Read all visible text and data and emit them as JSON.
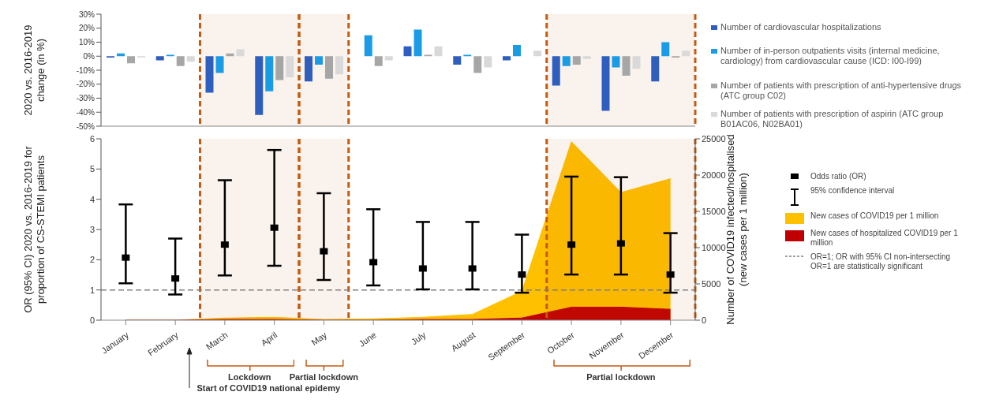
{
  "chart_data": [
    {
      "type": "bar",
      "categories": [
        "January",
        "February",
        "March",
        "April",
        "May",
        "June",
        "July",
        "August",
        "September",
        "October",
        "November",
        "December"
      ],
      "tick_labels": "y",
      "ylabel": "2020 vs. 2016-2019 change (in %)",
      "ylim": [
        -50,
        30
      ],
      "yticks": [
        {
          "value": -50,
          "label": "-50%"
        },
        {
          "value": -40,
          "label": "-40%"
        },
        {
          "value": -30,
          "label": "-30%"
        },
        {
          "value": -20,
          "label": "-20%"
        },
        {
          "value": -10,
          "label": "-10%"
        },
        {
          "value": 0,
          "label": "0%"
        },
        {
          "value": 10,
          "label": "10%"
        },
        {
          "value": 20,
          "label": "20%"
        },
        {
          "value": 30,
          "label": "30%"
        }
      ],
      "grid": false,
      "legend": "right",
      "series": [
        {
          "name": "Number of cardiovascular hospitalizations",
          "color": "#2e5fbf",
          "values": [
            -1,
            -3,
            -26,
            -42,
            -18,
            0,
            7,
            -6,
            -3,
            -21,
            -39,
            -18
          ]
        },
        {
          "name": "Number of in-person outpatients visits (internal medicine, cardiology) from cardiovascular cause (ICD: I00-I99)",
          "color": "#1a9be6",
          "values": [
            2,
            1,
            -12,
            -25,
            -6,
            15,
            19,
            1,
            8,
            -7,
            -8,
            10
          ]
        },
        {
          "name": "Number of patients with prescription of anti-hypertensive drugs (ATC group C02)",
          "color": "#a6a6a6",
          "values": [
            -5,
            -7,
            2,
            -17,
            -16,
            -7,
            1,
            -12,
            0,
            -6,
            -14,
            -1
          ]
        },
        {
          "name": "Number of patients with prescription of aspirin (ATC group B01AC06, N02BA01)",
          "color": "#d9d9d9",
          "values": [
            -1,
            -4,
            5,
            -15,
            -13,
            -3,
            7,
            -8,
            4,
            -2,
            -9,
            4
          ]
        }
      ],
      "bands": [
        {
          "axis": "x",
          "from": "March",
          "to": "April",
          "color": "#c55a11"
        },
        {
          "axis": "x",
          "from": "May",
          "to": "May",
          "color": "#c55a11"
        },
        {
          "axis": "x",
          "from": "October",
          "to": "December",
          "color": "#c55a11"
        }
      ]
    },
    {
      "type": "scatter",
      "categories": [
        "January",
        "February",
        "March",
        "April",
        "May",
        "June",
        "July",
        "August",
        "September",
        "October",
        "November",
        "December"
      ],
      "ylabel": "OR (95% CI) 2020 vs. 2016-2019 for proportion of  CS-STEMI patients",
      "ylim": [
        0,
        6
      ],
      "yticks": [
        0,
        1,
        2,
        3,
        4,
        5,
        6
      ],
      "y2label": "Number of COVID19 infected/hospitalised (new cases per 1 million)",
      "y2lim": [
        0,
        25000
      ],
      "y2ticks": [
        0,
        5000,
        10000,
        15000,
        20000,
        25000
      ],
      "grid": false,
      "legend": "right",
      "series": [
        {
          "name": "New cases of COVID19 per 1 million",
          "type": "area",
          "axis": "y2",
          "color": "#ffc000",
          "values": [
            0,
            0,
            300,
            400,
            100,
            200,
            400,
            800,
            4000,
            24600,
            17600,
            19500
          ]
        },
        {
          "name": "New cases of hospitalized COVID19 per 1 million",
          "type": "area",
          "axis": "y2",
          "color": "#c00000",
          "values": [
            0,
            0,
            100,
            100,
            0,
            0,
            100,
            100,
            300,
            1800,
            1800,
            1500
          ]
        },
        {
          "name": "Odds ratio (OR)",
          "type": "scatter",
          "color": "#000000",
          "marker": "square",
          "values": [
            2.07,
            1.38,
            2.5,
            3.06,
            2.28,
            1.92,
            1.71,
            1.71,
            1.51,
            2.5,
            2.54,
            1.51
          ],
          "errors": [
            [
              1.22,
              3.83
            ],
            [
              0.85,
              2.7
            ],
            [
              1.48,
              4.63
            ],
            [
              1.8,
              5.63
            ],
            [
              1.33,
              4.2
            ],
            [
              1.15,
              3.67
            ],
            [
              1.02,
              3.25
            ],
            [
              1.02,
              3.25
            ],
            [
              0.91,
              2.83
            ],
            [
              1.51,
              4.75
            ],
            [
              1.51,
              4.73
            ],
            [
              0.91,
              2.88
            ]
          ]
        }
      ],
      "ref_lines": [
        {
          "axis": "y",
          "value": 1,
          "color": "#7f7f7f",
          "line_style": "dashed",
          "label": "OR=1; OR with 95% CI non-intersecting OR=1 are statistically significant"
        }
      ],
      "bands": [
        {
          "axis": "x",
          "from": "March",
          "to": "April",
          "color": "#c55a11"
        },
        {
          "axis": "x",
          "from": "May",
          "to": "May",
          "color": "#c55a11"
        },
        {
          "axis": "x",
          "from": "October",
          "to": "December",
          "color": "#c55a11"
        }
      ],
      "annotations": [
        "Lockdown",
        "Partial lockdown",
        "Partial lockdown",
        "Start of COVID19 national epidemy",
        "95% confidence interval"
      ]
    }
  ]
}
